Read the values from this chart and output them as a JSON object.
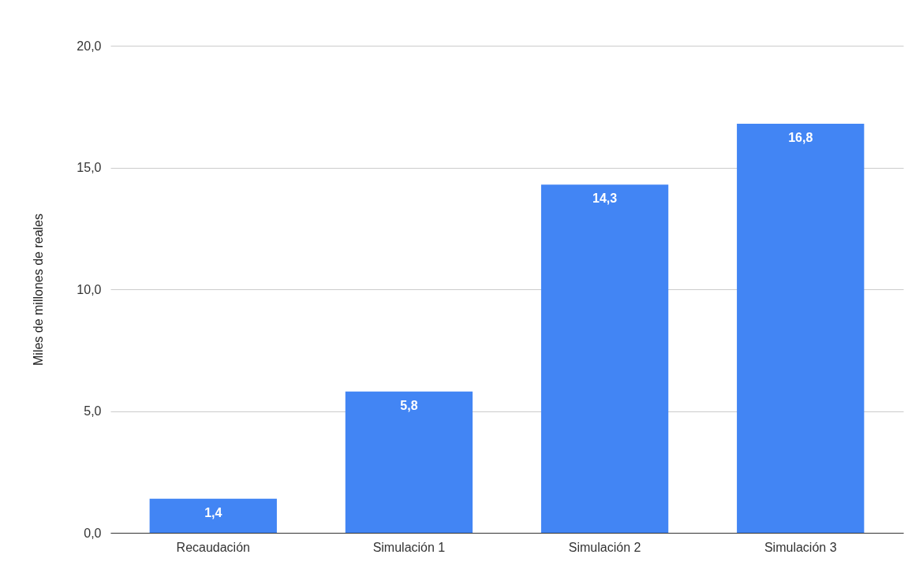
{
  "chart_data": {
    "type": "bar",
    "ylabel": "Miles de millones de reales",
    "categories": [
      "Recaudación",
      "Simulación 1",
      "Simulación 2",
      "Simulación 3"
    ],
    "values": [
      1.4,
      5.8,
      14.3,
      16.8
    ],
    "value_labels": [
      "1,4",
      "5,8",
      "14,3",
      "16,8"
    ],
    "color": "#4285f4",
    "ylim": [
      0,
      20
    ],
    "yticks": [
      {
        "value": 0,
        "label": "0,0"
      },
      {
        "value": 5,
        "label": "5,0"
      },
      {
        "value": 10,
        "label": "10,0"
      },
      {
        "value": 15,
        "label": "15,0"
      },
      {
        "value": 20,
        "label": "20,0"
      }
    ],
    "grid": "y"
  }
}
